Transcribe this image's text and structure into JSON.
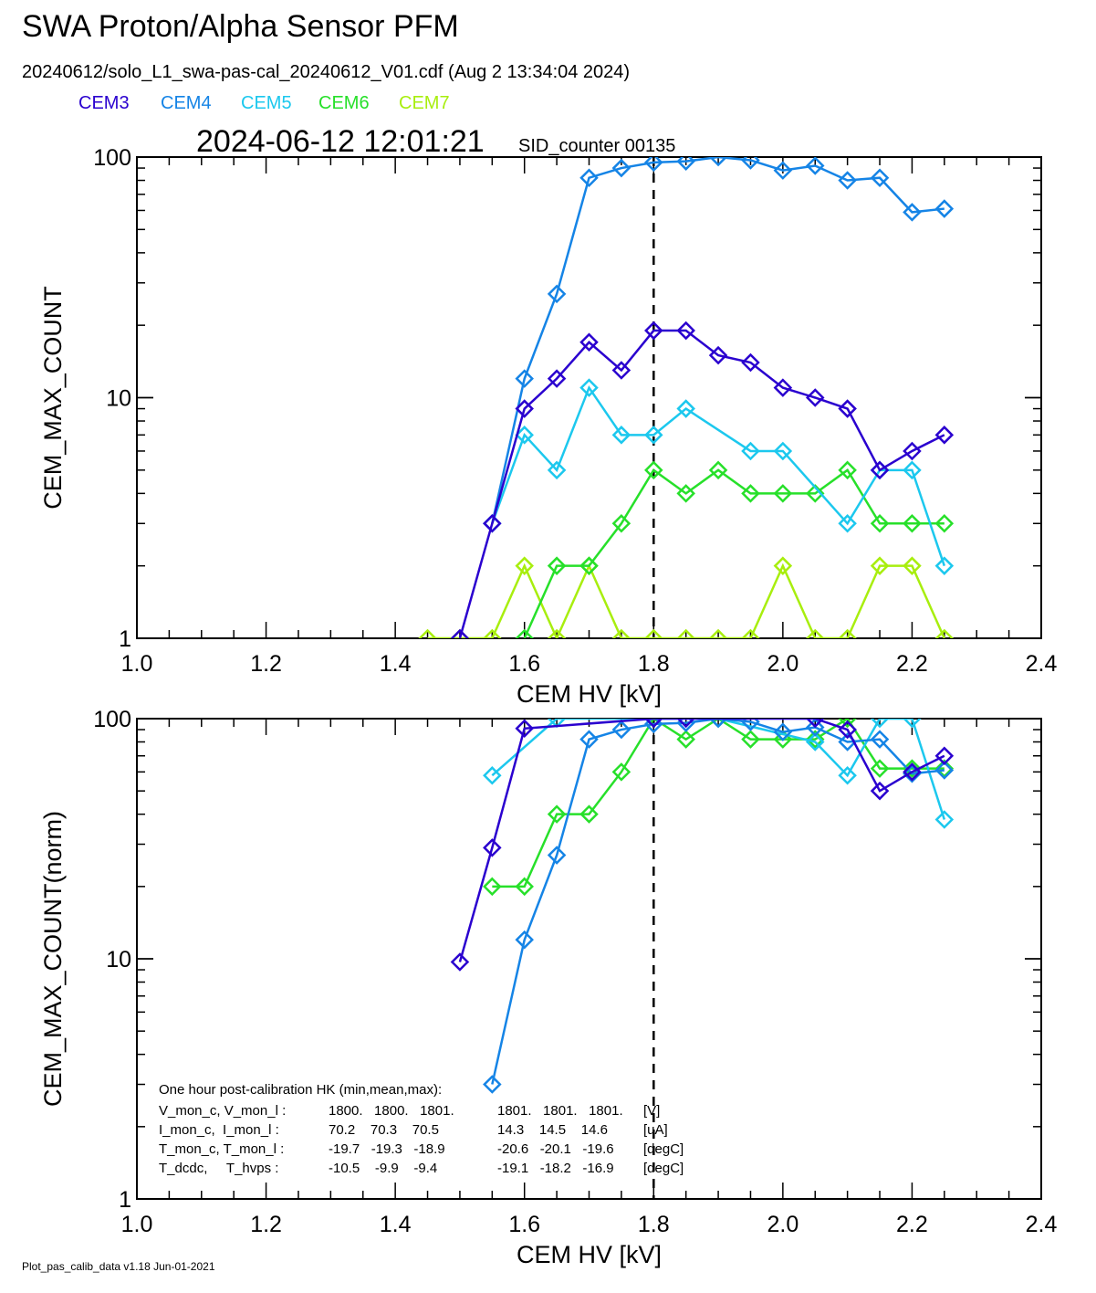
{
  "header": {
    "title": "SWA Proton/Alpha Sensor PFM",
    "file": "20240612/solo_L1_swa-pas-cal_20240612_V01.cdf  (Aug  2 13:34:04 2024)",
    "timestamp": "2024-06-12 12:01:21",
    "sid": "SID_counter 00135"
  },
  "legend": [
    {
      "name": "CEM3",
      "color": "#2a00cf"
    },
    {
      "name": "CEM4",
      "color": "#1584e6"
    },
    {
      "name": "CEM5",
      "color": "#1cc8ee"
    },
    {
      "name": "CEM6",
      "color": "#27e02a"
    },
    {
      "name": "CEM7",
      "color": "#a8ee0e"
    }
  ],
  "footer": "Plot_pas_calib_data v1.18 Jun-01-2021",
  "hk_note": {
    "title": "One hour post-calibration HK (min,mean,max):",
    "rows": [
      {
        "label": "V_mon_c, V_mon_l :",
        "c": "1800.   1800.   1801.",
        "l": "1801.   1801.   1801.",
        "unit": "[V]"
      },
      {
        "label": "I_mon_c,  I_mon_l :",
        "c": "70.2    70.3    70.5",
        "l": "14.3    14.5    14.6",
        "unit": "[uA]"
      },
      {
        "label": "T_mon_c, T_mon_l :",
        "c": "-19.7   -19.3   -18.9",
        "l": "-20.6   -20.1   -19.6",
        "unit": "[degC]"
      },
      {
        "label": "T_dcdc,     T_hvps :",
        "c": "-10.5    -9.9    -9.4",
        "l": "-19.1   -18.2   -16.9",
        "unit": "[degC]"
      }
    ]
  },
  "chart_data": [
    {
      "type": "line",
      "xlabel": "CEM HV [kV]",
      "ylabel": "CEM_MAX_COUNT",
      "xlim": [
        1.0,
        2.4
      ],
      "ylim": [
        1,
        100
      ],
      "yscale": "log",
      "xticks": [
        "1.0",
        "1.2",
        "1.4",
        "1.6",
        "1.8",
        "2.0",
        "2.2",
        "2.4"
      ],
      "yticks": [
        "1",
        "10",
        "100"
      ],
      "vline": 1.8,
      "x": [
        1.45,
        1.5,
        1.55,
        1.6,
        1.65,
        1.7,
        1.75,
        1.8,
        1.85,
        1.9,
        1.95,
        2.0,
        2.05,
        2.1,
        2.15,
        2.2,
        2.25
      ],
      "series": [
        {
          "name": "CEM3",
          "values": [
            null,
            1,
            3,
            9,
            12,
            17,
            13,
            19,
            19,
            15,
            14,
            11,
            10,
            9,
            5,
            6,
            7
          ]
        },
        {
          "name": "CEM4",
          "values": [
            null,
            null,
            3,
            12,
            27,
            82,
            90,
            95,
            96,
            100,
            97,
            88,
            92,
            80,
            82,
            59,
            61
          ]
        },
        {
          "name": "CEM5",
          "values": [
            null,
            null,
            3,
            7,
            5,
            11,
            7,
            7,
            9,
            null,
            6,
            6,
            null,
            3,
            5,
            5,
            2
          ]
        },
        {
          "name": "CEM6",
          "values": [
            null,
            null,
            null,
            1,
            2,
            2,
            3,
            5,
            4,
            5,
            4,
            4,
            4,
            5,
            3,
            3,
            3
          ]
        },
        {
          "name": "CEM7",
          "values": [
            1,
            1,
            1,
            2,
            1,
            2,
            1,
            1,
            1,
            1,
            1,
            2,
            1,
            1,
            2,
            2,
            1
          ]
        }
      ]
    },
    {
      "type": "line",
      "xlabel": "CEM HV [kV]",
      "ylabel": "CEM_MAX_COUNT(norm)",
      "xlim": [
        1.0,
        2.4
      ],
      "ylim": [
        1,
        100
      ],
      "yscale": "log",
      "xticks": [
        "1.0",
        "1.2",
        "1.4",
        "1.6",
        "1.8",
        "2.0",
        "2.2",
        "2.4"
      ],
      "yticks": [
        "1",
        "10",
        "100"
      ],
      "vline": 1.8,
      "x": [
        1.45,
        1.5,
        1.55,
        1.6,
        1.65,
        1.7,
        1.75,
        1.8,
        1.85,
        1.9,
        1.95,
        2.0,
        2.05,
        2.1,
        2.15,
        2.2,
        2.25
      ],
      "series": [
        {
          "name": "CEM3",
          "values": [
            null,
            9.7,
            29,
            91,
            null,
            null,
            null,
            100,
            100,
            null,
            null,
            null,
            100,
            90,
            50,
            60,
            70
          ]
        },
        {
          "name": "CEM4",
          "values": [
            null,
            null,
            3,
            12,
            27,
            82,
            90,
            95,
            96,
            100,
            97,
            88,
            92,
            80,
            82,
            59,
            61
          ]
        },
        {
          "name": "CEM5",
          "values": [
            null,
            null,
            58,
            null,
            100,
            null,
            null,
            100,
            null,
            100,
            null,
            null,
            80,
            58,
            100,
            100,
            38
          ]
        },
        {
          "name": "CEM6",
          "values": [
            null,
            null,
            20,
            20,
            40,
            40,
            60,
            100,
            82,
            100,
            82,
            82,
            82,
            100,
            62,
            62,
            62
          ]
        },
        {
          "name": "CEM7",
          "values": [
            null,
            null,
            null,
            null,
            null,
            null,
            null,
            null,
            null,
            null,
            null,
            null,
            null,
            null,
            null,
            null,
            null
          ]
        }
      ]
    }
  ]
}
